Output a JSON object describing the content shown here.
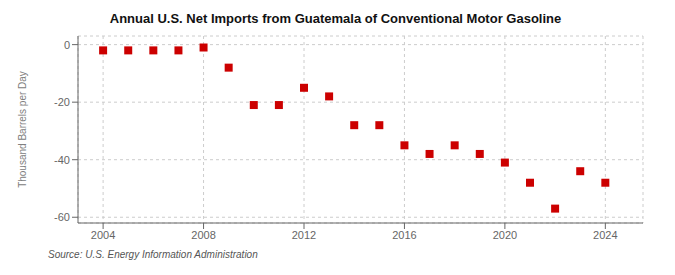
{
  "chart_data": {
    "type": "scatter",
    "title": "Annual U.S. Net Imports from Guatemala of Conventional Motor Gasoline",
    "ylabel": "Thousand Barrels per Day",
    "annotations": [
      "Source: U.S. Energy Information Administration"
    ],
    "x": [
      2004,
      2005,
      2006,
      2007,
      2008,
      2009,
      2010,
      2011,
      2012,
      2013,
      2014,
      2015,
      2016,
      2017,
      2018,
      2019,
      2020,
      2021,
      2022,
      2023,
      2024
    ],
    "values": [
      -2,
      -2,
      -2,
      -2,
      -1,
      -8,
      -21,
      -21,
      -15,
      -18,
      -28,
      -28,
      -35,
      -38,
      -35,
      -38,
      -41,
      -48,
      -57,
      -44,
      -48
    ],
    "color": "#cc0000",
    "marker": "square",
    "xlim": [
      2003.0,
      2025.5
    ],
    "ylim": [
      -62,
      3
    ],
    "yticks": [
      0,
      -20,
      -40,
      -60
    ],
    "xticks": [
      2004,
      2008,
      2012,
      2016,
      2020,
      2024
    ],
    "grid": true
  }
}
